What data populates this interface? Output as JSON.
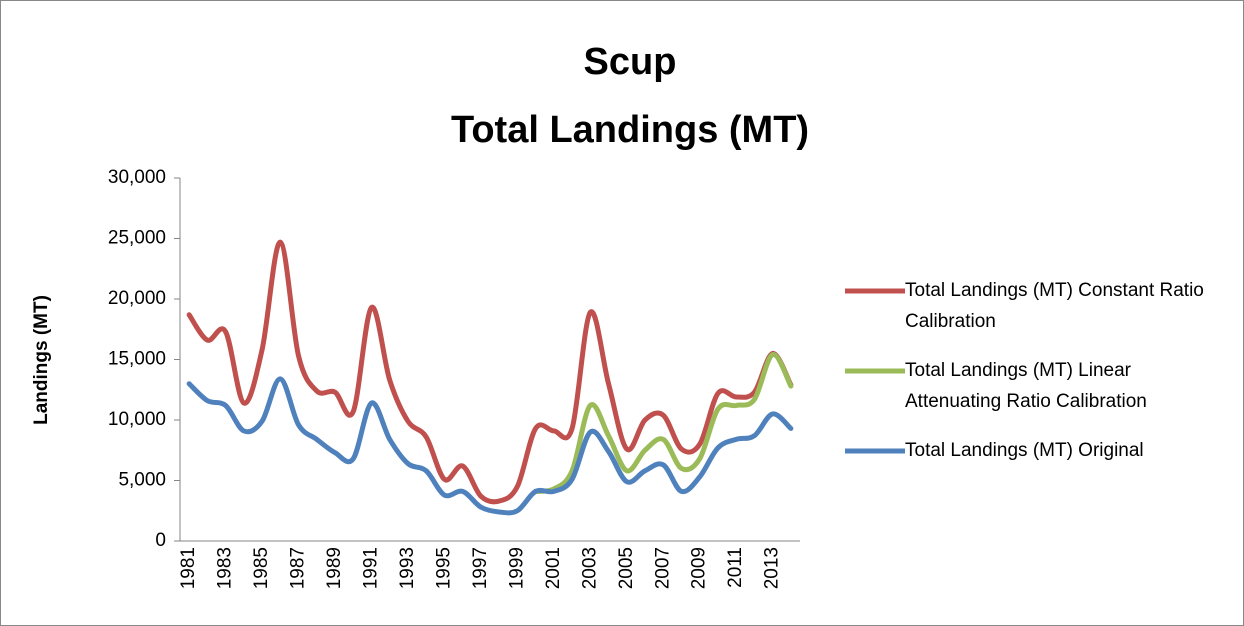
{
  "chart_data": {
    "type": "line",
    "title": "Scup",
    "subtitle": "Total Landings (MT)",
    "y_label": "Landings (MT)",
    "categories": [
      "1981",
      null,
      "1983",
      null,
      "1985",
      null,
      "1987",
      null,
      "1989",
      null,
      "1991",
      null,
      "1993",
      null,
      "1995",
      null,
      "1997",
      null,
      "1999",
      null,
      "2001",
      null,
      "2003",
      null,
      "2005",
      null,
      "2007",
      null,
      "2009",
      null,
      "2011",
      null,
      "2013",
      null
    ],
    "ylim": [
      0,
      30000
    ],
    "yticks": [
      0,
      {
        "value": 5000,
        "label": "5,000"
      },
      {
        "value": 10000,
        "label": "10,000"
      },
      {
        "value": 15000,
        "label": "15,000"
      },
      {
        "value": 20000,
        "label": "20,000"
      },
      {
        "value": 25000,
        "label": "25,000"
      },
      {
        "value": 30000,
        "label": "30,000"
      }
    ],
    "smooth": true,
    "legend": "right",
    "series": [
      {
        "name": "Total Landings (MT) Constant Ratio Calibration",
        "color": "#c0504d",
        "values": [
          18700,
          16600,
          17300,
          11400,
          15800,
          24700,
          15300,
          12400,
          12300,
          10700,
          19300,
          13300,
          9900,
          8600,
          5100,
          6200,
          3700,
          3300,
          4500,
          9300,
          9100,
          9300,
          18900,
          13000,
          7600,
          10000,
          10400,
          7600,
          8000,
          12200,
          11900,
          12300,
          15500,
          12900
        ]
      },
      {
        "name": "Total Landings (MT) Linear Attenuating Ratio Calibration",
        "color": "#9bbb59",
        "values": [
          null,
          null,
          null,
          null,
          null,
          null,
          null,
          null,
          null,
          null,
          null,
          null,
          null,
          null,
          null,
          null,
          null,
          null,
          null,
          4100,
          4300,
          5800,
          11200,
          8700,
          5800,
          7500,
          8400,
          6000,
          6800,
          10900,
          11200,
          11700,
          15400,
          12800
        ]
      },
      {
        "name": "Total Landings (MT) Original",
        "color": "#4f81bd",
        "values": [
          13000,
          11600,
          11200,
          9100,
          9900,
          13400,
          9600,
          8400,
          7300,
          6800,
          11400,
          8400,
          6400,
          5800,
          3800,
          4100,
          2800,
          2400,
          2500,
          4100,
          4100,
          5100,
          9000,
          7400,
          4900,
          5800,
          6300,
          4100,
          5300,
          7700,
          8400,
          8700,
          10500,
          9300
        ]
      }
    ]
  }
}
